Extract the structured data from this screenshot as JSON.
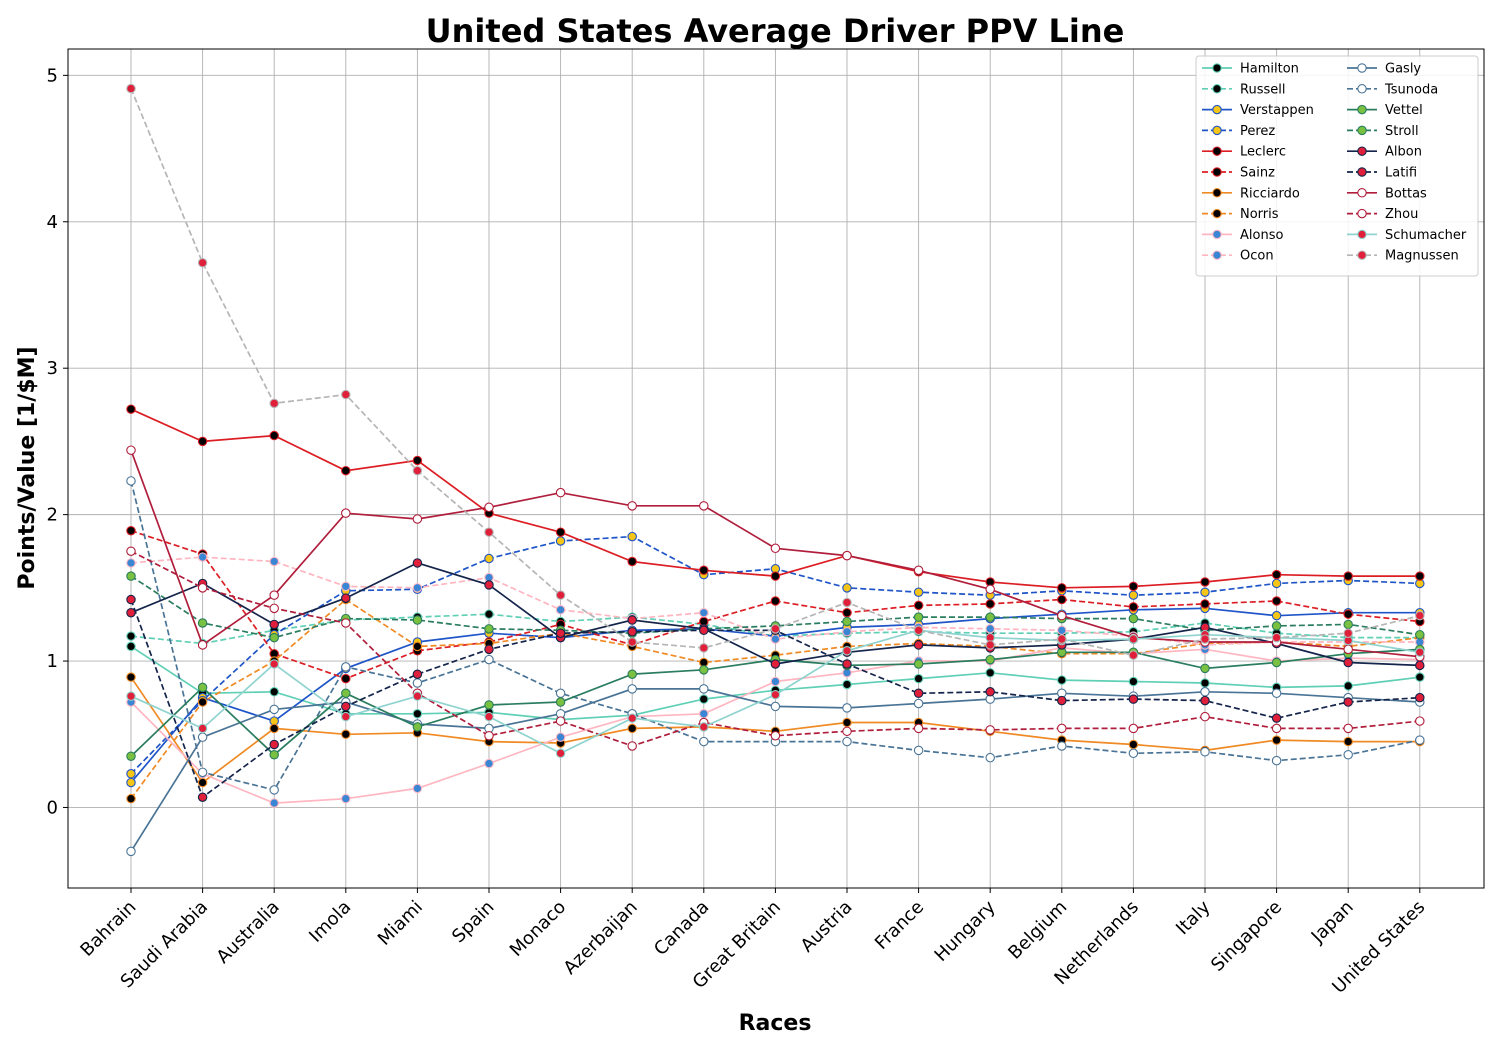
{
  "chart_data": {
    "type": "line",
    "title": "United States Average Driver PPV Line",
    "xlabel": "Races",
    "ylabel": "Points/Value [1/$M]",
    "categories": [
      "Bahrain",
      "Saudi Arabia",
      "Australia",
      "Imola",
      "Miami",
      "Spain",
      "Monaco",
      "Azerbaijan",
      "Canada",
      "Great Britain",
      "Austria",
      "France",
      "Hungary",
      "Belgium",
      "Netherlands",
      "Italy",
      "Singapore",
      "Japan",
      "United States"
    ],
    "ylim": [
      -0.55,
      5.18
    ],
    "yticks": [
      0,
      1,
      2,
      3,
      4,
      5
    ],
    "ytick_labels": [
      "0",
      "1",
      "2",
      "3",
      "4",
      "5"
    ],
    "grid": true,
    "legend_position": "top-right",
    "legend_columns": 2,
    "series": [
      {
        "name": "Hamilton",
        "color": "#5fcfb5",
        "linestyle": "solid",
        "marker_face": "#000000",
        "values": [
          1.1,
          0.78,
          0.79,
          0.64,
          0.64,
          0.65,
          0.6,
          0.63,
          0.74,
          0.8,
          0.84,
          0.88,
          0.92,
          0.87,
          0.86,
          0.85,
          0.82,
          0.83,
          0.89
        ]
      },
      {
        "name": "Russell",
        "color": "#5fcfb5",
        "linestyle": "dashed",
        "marker_face": "#000000",
        "values": [
          1.17,
          1.12,
          1.21,
          1.28,
          1.3,
          1.32,
          1.27,
          1.3,
          1.25,
          1.17,
          1.19,
          1.2,
          1.19,
          1.19,
          1.2,
          1.26,
          1.19,
          1.16,
          1.16
        ]
      },
      {
        "name": "Verstappen",
        "color": "#1f55c8",
        "linestyle": "solid",
        "marker_face": "#f5c518",
        "values": [
          0.17,
          0.75,
          0.59,
          0.95,
          1.13,
          1.19,
          1.16,
          1.21,
          1.22,
          1.17,
          1.23,
          1.25,
          1.29,
          1.32,
          1.35,
          1.36,
          1.31,
          1.33,
          1.33
        ]
      },
      {
        "name": "Perez",
        "color": "#1f55c8",
        "linestyle": "dashed",
        "marker_face": "#f5c518",
        "values": [
          0.23,
          0.73,
          1.18,
          1.48,
          1.49,
          1.7,
          1.82,
          1.85,
          1.59,
          1.63,
          1.5,
          1.47,
          1.45,
          1.48,
          1.45,
          1.47,
          1.53,
          1.55,
          1.53
        ]
      },
      {
        "name": "Leclerc",
        "color": "#dc1e24",
        "linestyle": "solid",
        "marker_face": "#000000",
        "values": [
          2.72,
          2.5,
          2.54,
          2.3,
          2.37,
          2.01,
          1.88,
          1.68,
          1.62,
          1.58,
          1.72,
          1.61,
          1.54,
          1.5,
          1.51,
          1.54,
          1.59,
          1.58,
          1.58
        ]
      },
      {
        "name": "Sainz",
        "color": "#dc1e24",
        "linestyle": "dashed",
        "marker_face": "#000000",
        "values": [
          1.89,
          1.73,
          1.05,
          0.88,
          1.07,
          1.13,
          1.25,
          1.11,
          1.27,
          1.41,
          1.33,
          1.38,
          1.39,
          1.42,
          1.37,
          1.39,
          1.41,
          1.32,
          1.27
        ]
      },
      {
        "name": "Ricciardo",
        "color": "#f08a24",
        "linestyle": "solid",
        "marker_face": "#000000",
        "values": [
          0.89,
          0.17,
          0.54,
          0.5,
          0.51,
          0.45,
          0.44,
          0.54,
          0.55,
          0.52,
          0.58,
          0.58,
          0.52,
          0.46,
          0.43,
          0.39,
          0.46,
          0.45,
          0.45
        ]
      },
      {
        "name": "Norris",
        "color": "#f08a24",
        "linestyle": "dashed",
        "marker_face": "#000000",
        "values": [
          0.06,
          0.72,
          1.0,
          1.42,
          1.1,
          1.12,
          1.19,
          1.1,
          0.99,
          1.04,
          1.1,
          1.12,
          1.1,
          1.05,
          1.05,
          1.12,
          1.13,
          1.1,
          1.16
        ]
      },
      {
        "name": "Alonso",
        "color": "#ffb6c1",
        "linestyle": "solid",
        "marker_face": "#3a86d4",
        "values": [
          0.72,
          0.23,
          0.03,
          0.06,
          0.13,
          0.3,
          0.48,
          0.62,
          0.64,
          0.86,
          0.92,
          1.0,
          1.0,
          1.09,
          1.05,
          1.08,
          1.0,
          1.02,
          1.01
        ]
      },
      {
        "name": "Ocon",
        "color": "#ffb6c1",
        "linestyle": "dashed",
        "marker_face": "#3a86d4",
        "values": [
          1.67,
          1.71,
          1.68,
          1.51,
          1.5,
          1.57,
          1.35,
          1.29,
          1.33,
          1.15,
          1.2,
          1.23,
          1.22,
          1.21,
          1.17,
          1.11,
          1.13,
          1.13,
          1.13
        ]
      },
      {
        "name": "Gasly",
        "color": "#4a7496",
        "linestyle": "solid",
        "marker_face": "#ffffff",
        "values": [
          -0.3,
          0.48,
          0.67,
          0.72,
          0.57,
          0.54,
          0.64,
          0.81,
          0.81,
          0.69,
          0.68,
          0.71,
          0.74,
          0.78,
          0.76,
          0.79,
          0.78,
          0.75,
          0.72
        ]
      },
      {
        "name": "Tsunoda",
        "color": "#4a7496",
        "linestyle": "dashed",
        "marker_face": "#ffffff",
        "values": [
          2.23,
          0.24,
          0.12,
          0.96,
          0.85,
          1.01,
          0.78,
          0.64,
          0.45,
          0.45,
          0.45,
          0.39,
          0.34,
          0.42,
          0.37,
          0.38,
          0.32,
          0.36,
          0.46
        ]
      },
      {
        "name": "Vettel",
        "color": "#2a7d5e",
        "linestyle": "solid",
        "marker_face": "#7ac142",
        "values": [
          0.35,
          0.82,
          0.36,
          0.78,
          0.55,
          0.7,
          0.72,
          0.91,
          0.94,
          1.01,
          0.97,
          0.98,
          1.01,
          1.06,
          1.06,
          0.95,
          0.99,
          1.05,
          1.08
        ]
      },
      {
        "name": "Stroll",
        "color": "#2a7d5e",
        "linestyle": "dashed",
        "marker_face": "#7ac142",
        "values": [
          1.58,
          1.26,
          1.16,
          1.29,
          1.28,
          1.22,
          1.21,
          1.19,
          1.22,
          1.24,
          1.27,
          1.3,
          1.3,
          1.29,
          1.29,
          1.21,
          1.24,
          1.25,
          1.18
        ]
      },
      {
        "name": "Albon",
        "color": "#14244a",
        "linestyle": "solid",
        "marker_face": "#e0203a",
        "values": [
          1.33,
          1.53,
          1.25,
          1.43,
          1.67,
          1.52,
          1.16,
          1.28,
          1.22,
          0.98,
          1.06,
          1.11,
          1.09,
          1.11,
          1.15,
          1.23,
          1.12,
          0.99,
          0.97
        ]
      },
      {
        "name": "Latifi",
        "color": "#14244a",
        "linestyle": "dashed",
        "marker_face": "#e0203a",
        "values": [
          1.42,
          0.07,
          0.43,
          0.69,
          0.91,
          1.08,
          1.19,
          1.2,
          1.21,
          1.21,
          0.98,
          0.78,
          0.79,
          0.73,
          0.74,
          0.73,
          0.61,
          0.72,
          0.75
        ]
      },
      {
        "name": "Bottas",
        "color": "#b01e3c",
        "linestyle": "solid",
        "marker_face": "#ffffff",
        "values": [
          2.44,
          1.11,
          1.45,
          2.01,
          1.97,
          2.05,
          2.15,
          2.06,
          2.06,
          1.77,
          1.72,
          1.62,
          1.49,
          1.31,
          1.16,
          1.13,
          1.13,
          1.08,
          1.03
        ]
      },
      {
        "name": "Zhou",
        "color": "#b01e3c",
        "linestyle": "dashed",
        "marker_face": "#ffffff",
        "values": [
          1.75,
          1.5,
          1.36,
          1.26,
          0.78,
          0.49,
          0.59,
          0.42,
          0.58,
          0.49,
          0.52,
          0.54,
          0.53,
          0.54,
          0.54,
          0.62,
          0.54,
          0.54,
          0.59
        ]
      },
      {
        "name": "Schumacher",
        "color": "#8fd3cf",
        "linestyle": "solid",
        "marker_face": "#e0203a",
        "values": [
          0.76,
          0.54,
          0.98,
          0.62,
          0.76,
          0.62,
          0.37,
          0.61,
          0.55,
          0.77,
          1.07,
          1.21,
          1.16,
          1.14,
          1.15,
          1.18,
          1.16,
          1.14,
          1.06
        ]
      },
      {
        "name": "Magnussen",
        "color": "#b5b5b5",
        "linestyle": "dashed",
        "marker_face": "#e0203a",
        "values": [
          4.91,
          3.72,
          2.76,
          2.82,
          2.3,
          1.88,
          1.45,
          1.13,
          1.09,
          1.22,
          1.4,
          1.21,
          1.11,
          1.15,
          1.04,
          1.15,
          1.16,
          1.19,
          1.31
        ]
      }
    ]
  }
}
